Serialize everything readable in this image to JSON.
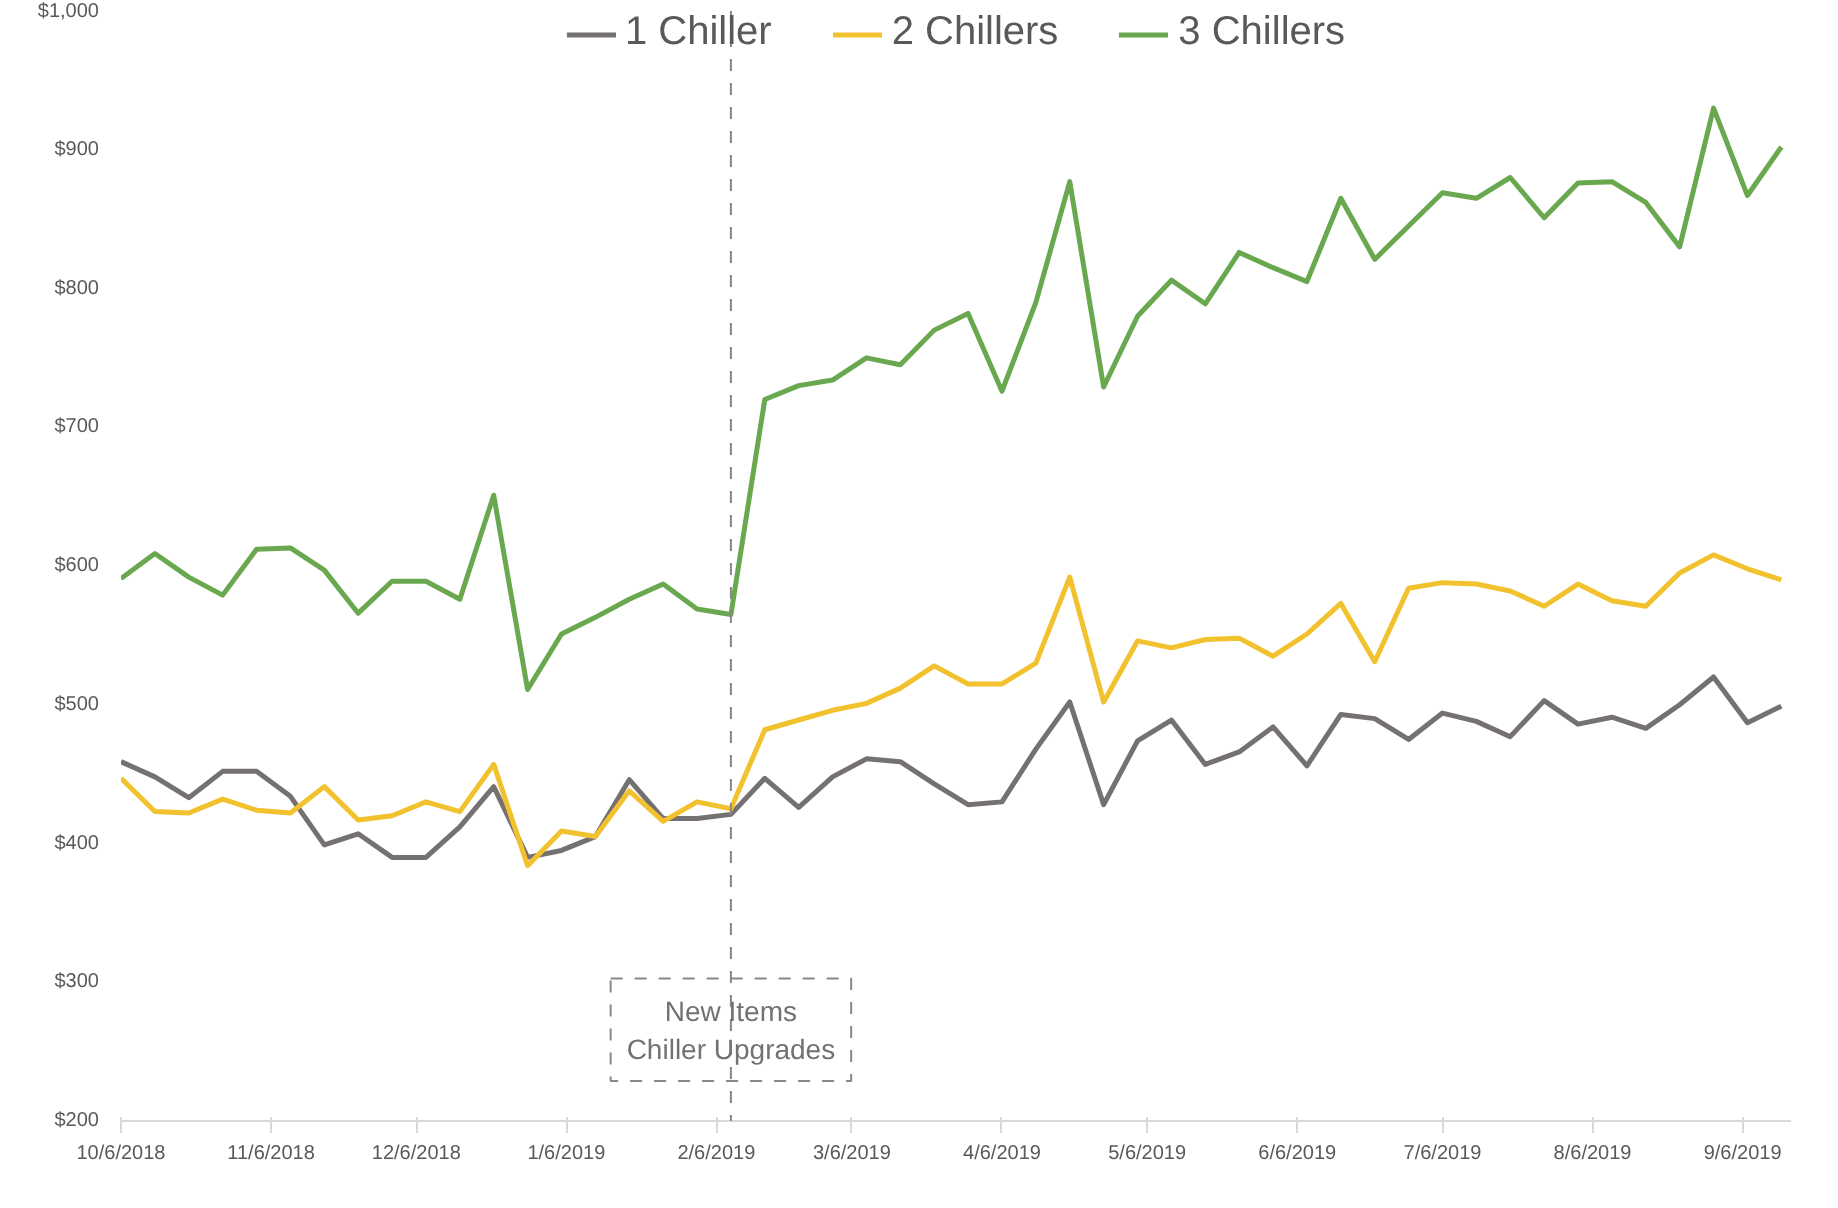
{
  "chart_data": {
    "type": "line",
    "x": [
      "2018-10-06",
      "2018-10-13",
      "2018-10-20",
      "2018-10-27",
      "2018-11-03",
      "2018-11-10",
      "2018-11-17",
      "2018-11-24",
      "2018-12-01",
      "2018-12-08",
      "2018-12-15",
      "2018-12-22",
      "2018-12-29",
      "2019-01-05",
      "2019-01-12",
      "2019-01-19",
      "2019-01-26",
      "2019-02-02",
      "2019-02-09",
      "2019-02-16",
      "2019-02-23",
      "2019-03-02",
      "2019-03-09",
      "2019-03-16",
      "2019-03-23",
      "2019-03-30",
      "2019-04-06",
      "2019-04-13",
      "2019-04-20",
      "2019-04-27",
      "2019-05-04",
      "2019-05-11",
      "2019-05-18",
      "2019-05-25",
      "2019-06-01",
      "2019-06-08",
      "2019-06-15",
      "2019-06-22",
      "2019-06-29",
      "2019-07-06",
      "2019-07-13",
      "2019-07-20",
      "2019-07-27",
      "2019-08-03",
      "2019-08-10",
      "2019-08-17",
      "2019-08-24",
      "2019-08-31",
      "2019-09-07",
      "2019-09-14"
    ],
    "series": [
      {
        "name": "1 Chiller",
        "color": "#767171",
        "values": [
          459,
          448,
          433,
          452,
          452,
          434,
          399,
          407,
          390,
          390,
          412,
          441,
          390,
          395,
          405,
          446,
          418,
          418,
          421,
          447,
          426,
          448,
          461,
          459,
          443,
          428,
          430,
          468,
          502,
          428,
          474,
          489,
          457,
          466,
          484,
          456,
          493,
          490,
          475,
          494,
          488,
          477,
          503,
          486,
          491,
          483,
          500,
          520,
          487,
          499
        ]
      },
      {
        "name": "2 Chillers",
        "color": "#f2c12e",
        "values": [
          447,
          423,
          422,
          432,
          424,
          422,
          441,
          417,
          420,
          430,
          423,
          457,
          384,
          409,
          405,
          438,
          416,
          430,
          425,
          482,
          489,
          496,
          501,
          512,
          528,
          515,
          515,
          530,
          592,
          502,
          546,
          541,
          547,
          548,
          535,
          551,
          573,
          531,
          584,
          588,
          587,
          582,
          571,
          587,
          575,
          571,
          595,
          608,
          598,
          590
        ]
      },
      {
        "name": "3 Chillers",
        "color": "#6aa84f",
        "values": [
          591,
          609,
          592,
          579,
          612,
          613,
          597,
          566,
          589,
          589,
          576,
          651,
          511,
          551,
          563,
          576,
          587,
          569,
          565,
          720,
          730,
          734,
          750,
          745,
          770,
          782,
          726,
          790,
          877,
          729,
          780,
          806,
          789,
          826,
          815,
          805,
          865,
          821,
          845,
          869,
          865,
          880,
          851,
          876,
          877,
          862,
          830,
          930,
          867,
          902
        ]
      }
    ],
    "xlim": [
      "2018-10-06",
      "2019-09-16"
    ],
    "xticks": [
      {
        "value": "2018-10-06",
        "label": "10/6/2018"
      },
      {
        "value": "2018-11-06",
        "label": "11/6/2018"
      },
      {
        "value": "2018-12-06",
        "label": "12/6/2018"
      },
      {
        "value": "2019-01-06",
        "label": "1/6/2019"
      },
      {
        "value": "2019-02-06",
        "label": "2/6/2019"
      },
      {
        "value": "2019-03-06",
        "label": "3/6/2019"
      },
      {
        "value": "2019-04-06",
        "label": "4/6/2019"
      },
      {
        "value": "2019-05-06",
        "label": "5/6/2019"
      },
      {
        "value": "2019-06-06",
        "label": "6/6/2019"
      },
      {
        "value": "2019-07-06",
        "label": "7/6/2019"
      },
      {
        "value": "2019-08-06",
        "label": "8/6/2019"
      },
      {
        "value": "2019-09-06",
        "label": "9/6/2019"
      }
    ],
    "ylim": [
      200,
      1000
    ],
    "yticks": [
      {
        "value": 200,
        "label": "$200"
      },
      {
        "value": 300,
        "label": "$300"
      },
      {
        "value": 400,
        "label": "$400"
      },
      {
        "value": 500,
        "label": "$500"
      },
      {
        "value": 600,
        "label": "$600"
      },
      {
        "value": 700,
        "label": "$700"
      },
      {
        "value": 800,
        "label": "$800"
      },
      {
        "value": 900,
        "label": "$900"
      },
      {
        "value": 1000,
        "label": "$1,000"
      }
    ],
    "ref_lines": [
      {
        "axis": "x",
        "value": "2019-02-09",
        "label": "New Items\nChiller Upgrades",
        "color": "#888888",
        "line_style": "dashed"
      }
    ],
    "grid": false,
    "legend": "top",
    "marker": "none",
    "line_style": "solid"
  }
}
